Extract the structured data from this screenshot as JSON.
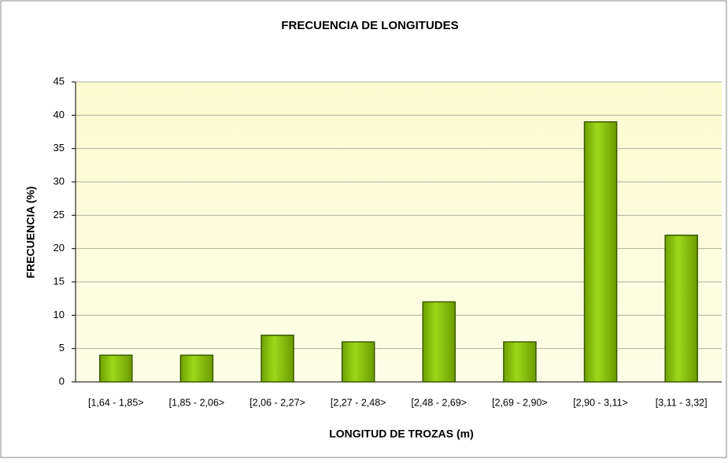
{
  "chart_data": {
    "type": "bar",
    "title": "FRECUENCIA DE LONGITUDES",
    "x_label": "LONGITUD DE TROZAS (m)",
    "y_label": "FRECUENCIA (%)",
    "categories": [
      "[1,64 - 1,85>",
      "[1,85 - 2,06>",
      "[2,06 - 2,27>",
      "[2,27 - 2,48>",
      "[2,48 - 2,69>",
      "[2,69 - 2,90>",
      "[2,90 - 3,11>",
      "[3,11 - 3,32]"
    ],
    "values": [
      4,
      4,
      7,
      6,
      12,
      6,
      39,
      22
    ],
    "color": "#8cc400",
    "ylim": [
      0,
      45
    ],
    "yticks": [
      0,
      5,
      10,
      15,
      20,
      25,
      30,
      35,
      40,
      45
    ],
    "grid": true
  }
}
